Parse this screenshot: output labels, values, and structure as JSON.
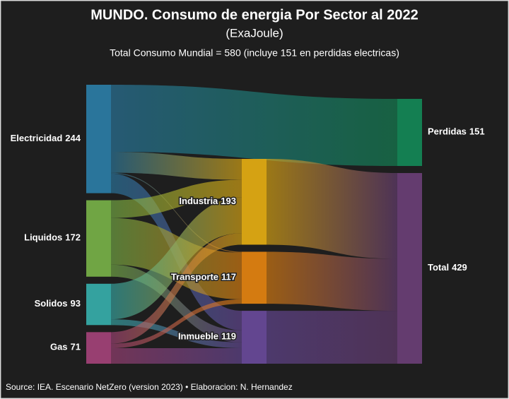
{
  "chart_data": {
    "type": "sankey",
    "title": "MUNDO. Consumo de energia Por Sector al 2022",
    "subtitle": "(ExaJoule)",
    "note": "Total Consumo Mundial = 580 (incluye 151 en perdidas electricas)",
    "source": "Source: IEA. Escenario NetZero (version 2023) • Elaboracion: N. Hernandez",
    "nodes": [
      {
        "name": "Electricidad",
        "value": 244,
        "color": "#2b7ea8",
        "column": 0
      },
      {
        "name": "Liquidos",
        "value": 172,
        "color": "#79b448",
        "column": 0
      },
      {
        "name": "Solidos",
        "value": 93,
        "color": "#36b0ad",
        "column": 0
      },
      {
        "name": "Gas",
        "value": 71,
        "color": "#a5437a",
        "column": 0
      },
      {
        "name": "Industria",
        "value": 193,
        "color": "#e9b012",
        "column": 1
      },
      {
        "name": "Transporte",
        "value": 117,
        "color": "#e8850f",
        "column": 1
      },
      {
        "name": "Inmueble",
        "value": 119,
        "color": "#6a4a9c",
        "column": 1
      },
      {
        "name": "Perdidas",
        "value": 151,
        "color": "#138a58",
        "column": 2
      },
      {
        "name": "Total",
        "value": 429,
        "color": "#6b3f78",
        "column": 2
      }
    ],
    "links": [
      {
        "source": 0,
        "target": 7,
        "value": 151
      },
      {
        "source": 0,
        "target": 4,
        "value": 47
      },
      {
        "source": 0,
        "target": 5,
        "value": 2
      },
      {
        "source": 0,
        "target": 6,
        "value": 44
      },
      {
        "source": 1,
        "target": 4,
        "value": 40
      },
      {
        "source": 1,
        "target": 5,
        "value": 105
      },
      {
        "source": 1,
        "target": 6,
        "value": 27
      },
      {
        "source": 2,
        "target": 4,
        "value": 80
      },
      {
        "source": 2,
        "target": 6,
        "value": 13
      },
      {
        "source": 3,
        "target": 4,
        "value": 26
      },
      {
        "source": 3,
        "target": 5,
        "value": 10
      },
      {
        "source": 3,
        "target": 6,
        "value": 35
      },
      {
        "source": 4,
        "target": 8,
        "value": 193
      },
      {
        "source": 5,
        "target": 8,
        "value": 117
      },
      {
        "source": 6,
        "target": 8,
        "value": 119
      }
    ]
  }
}
